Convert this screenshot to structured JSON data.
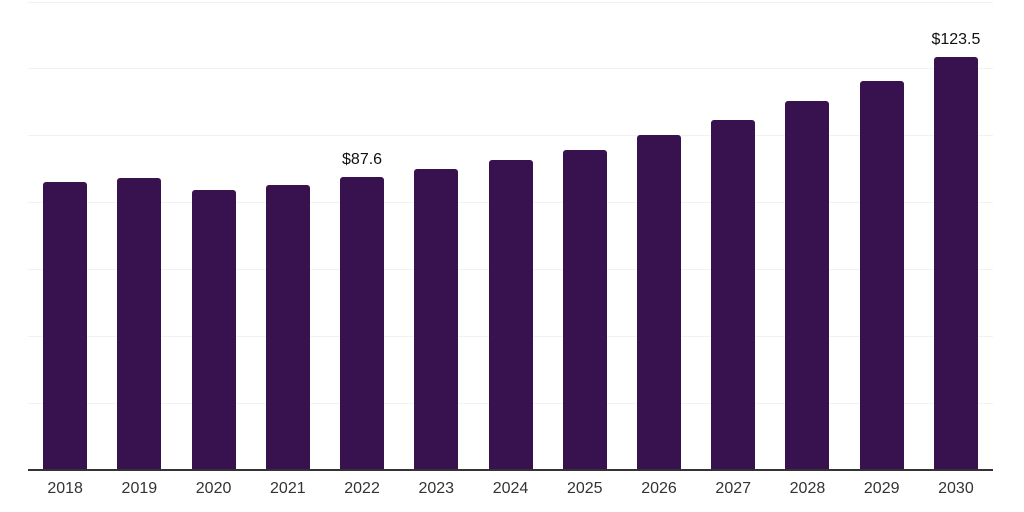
{
  "chart_data": {
    "type": "bar",
    "title": "",
    "xlabel": "",
    "ylabel": "",
    "categories": [
      "2018",
      "2019",
      "2020",
      "2021",
      "2022",
      "2023",
      "2024",
      "2025",
      "2026",
      "2027",
      "2028",
      "2029",
      "2030"
    ],
    "values": [
      86.2,
      87.5,
      83.8,
      85.3,
      87.6,
      90.1,
      92.8,
      95.7,
      100.2,
      104.7,
      110.3,
      116.3,
      123.5
    ],
    "point_labels": [
      null,
      null,
      null,
      null,
      "$87.6",
      null,
      null,
      null,
      null,
      null,
      null,
      null,
      "$123.5"
    ],
    "ylim": [
      0,
      140
    ],
    "gridline_step": 20,
    "grid": true,
    "legend": false,
    "y_axis_labels_visible": false,
    "colors": {
      "bar": "#38124e",
      "gridline": "#f2f2f2",
      "baseline": "#333333",
      "tick_label": "#333333",
      "point_label": "#111111",
      "background": "#ffffff"
    }
  }
}
